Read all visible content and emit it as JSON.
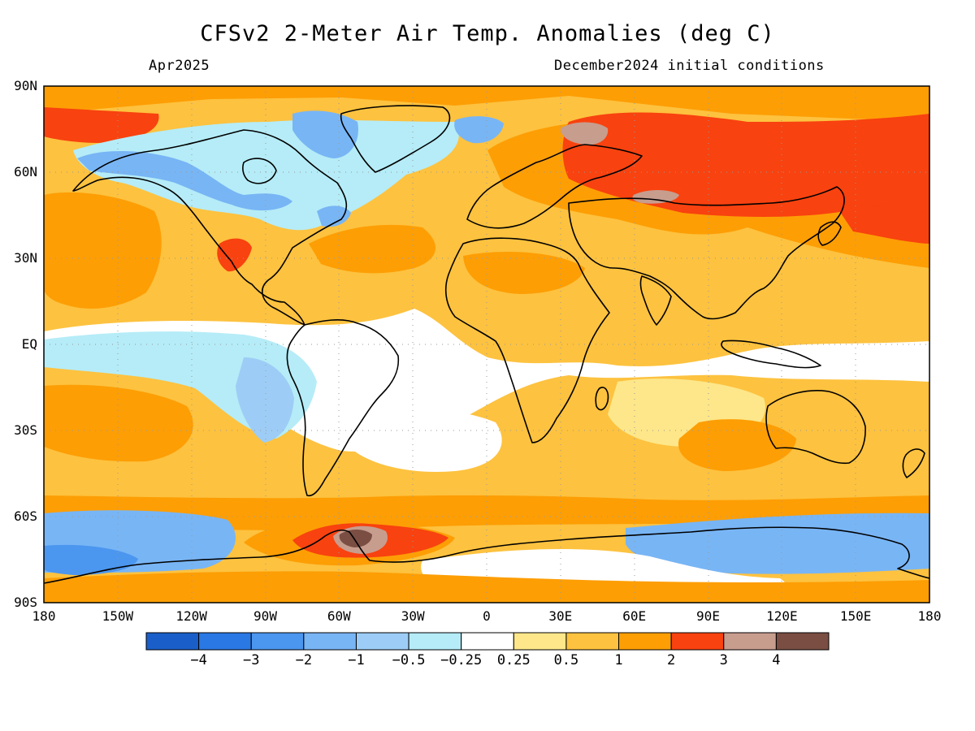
{
  "title": "CFSv2 2-Meter Air Temp. Anomalies (deg C)",
  "subtitle_left": "Apr2025",
  "subtitle_right": "December2024 initial conditions",
  "lat_labels": [
    "90N",
    "60N",
    "30N",
    "EQ",
    "30S",
    "60S",
    "90S"
  ],
  "lon_labels": [
    "180",
    "150W",
    "120W",
    "90W",
    "60W",
    "30W",
    "0",
    "30E",
    "60E",
    "90E",
    "120E",
    "150E",
    "180"
  ],
  "colorbar": {
    "colors": [
      "#1a5fc9",
      "#2a78e4",
      "#4b96ef",
      "#78b5f5",
      "#9dcdf6",
      "#b5ecf7",
      "#ffffff",
      "#fde78a",
      "#fdc23f",
      "#fd9e05",
      "#f8420f",
      "#c79d8e",
      "#7a4e43"
    ],
    "labels": [
      "−4",
      "−3",
      "−2",
      "−1",
      "−0.5",
      "−0.25",
      "0.25",
      "0.5",
      "1",
      "2",
      "3",
      "4"
    ]
  },
  "map": {
    "base_color": "#fdc23f",
    "regions": [
      {
        "name": "region-arctic-warm",
        "category": "2"
      },
      {
        "name": "region-eurasia-warm",
        "category": "2"
      },
      {
        "name": "region-siberia-hot",
        "category": "3"
      },
      {
        "name": "region-east-siberia-hot",
        "category": "3"
      },
      {
        "name": "region-russia-max",
        "category": "4"
      },
      {
        "name": "region-kara-max",
        "category": "4"
      },
      {
        "name": "region-north-atlantic-hot",
        "category": "3"
      },
      {
        "name": "region-canada-cool",
        "category": "-0.25"
      },
      {
        "name": "region-canada-cold",
        "category": "-1"
      },
      {
        "name": "region-greenland-cold",
        "category": "-1"
      },
      {
        "name": "region-pacific-warm",
        "category": "2"
      },
      {
        "name": "region-mexico-hot",
        "category": "3"
      },
      {
        "name": "region-tropics-neutral",
        "category": "0"
      },
      {
        "name": "region-east-pacific-cool",
        "category": "-0.25"
      },
      {
        "name": "region-peru-cool",
        "category": "-0.5"
      },
      {
        "name": "region-south-atlantic-neutral",
        "category": "0"
      },
      {
        "name": "region-indian-ocean-mild",
        "category": "0.5"
      },
      {
        "name": "region-south-pacific-warm",
        "category": "2"
      },
      {
        "name": "region-southern-ocean-warm",
        "category": "2"
      },
      {
        "name": "region-southern-ocean-cold",
        "category": "-1"
      },
      {
        "name": "region-ross-cold",
        "category": "-2"
      },
      {
        "name": "region-antarctica-neutral",
        "category": "0"
      },
      {
        "name": "region-weddell-hot",
        "category": "3"
      },
      {
        "name": "region-weddell-max",
        "category": "4"
      },
      {
        "name": "region-weddell-extreme",
        "category": ">4"
      }
    ]
  }
}
